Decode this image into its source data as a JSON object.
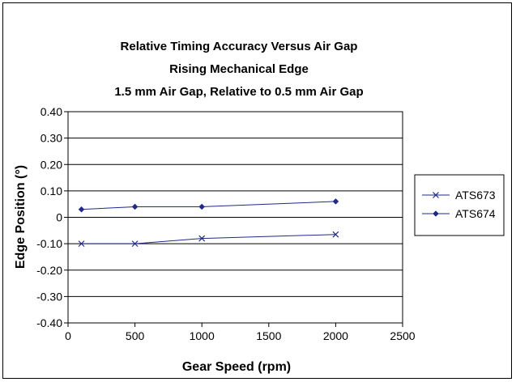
{
  "chart_data": {
    "type": "line",
    "title_lines": [
      "Relative Timing Accuracy Versus Air Gap",
      "Rising Mechanical Edge",
      "1.5 mm Air Gap, Relative to 0.5 mm Air Gap"
    ],
    "xlabel": "Gear Speed (rpm)",
    "ylabel": "Edge Position (°)",
    "xlim": [
      0,
      2500
    ],
    "ylim": [
      -0.4,
      0.4
    ],
    "x_ticks": [
      "0",
      "500",
      "1000",
      "1500",
      "2000",
      "2500"
    ],
    "y_ticks": [
      "0.40",
      "0.30",
      "0.20",
      "0.10",
      "0",
      "-0.10",
      "-0.20",
      "-0.30",
      "-0.40"
    ],
    "grid": "horizontal",
    "legend_position": "right",
    "series": [
      {
        "name": "ATS673",
        "marker": "x",
        "color": "#1f2a8a",
        "x": [
          100,
          500,
          1000,
          2000
        ],
        "y": [
          -0.1,
          -0.1,
          -0.08,
          -0.065
        ]
      },
      {
        "name": "ATS674",
        "marker": "diamond",
        "color": "#1f2a8a",
        "x": [
          100,
          500,
          1000,
          2000
        ],
        "y": [
          0.03,
          0.04,
          0.04,
          0.06
        ]
      }
    ]
  }
}
